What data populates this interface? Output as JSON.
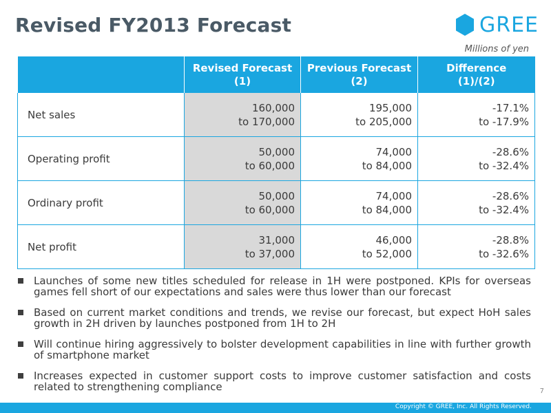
{
  "title": "Revised FY2013 Forecast",
  "logo": {
    "text": "GREE",
    "color": "#1aa6e0"
  },
  "units": "Millions of yen",
  "table": {
    "headers": [
      {
        "line1": "",
        "line2": ""
      },
      {
        "line1": "Revised Forecast",
        "line2": "(1)"
      },
      {
        "line1": "Previous Forecast",
        "line2": "(2)"
      },
      {
        "line1": "Difference",
        "line2": "(1)/(2)"
      }
    ],
    "rows": [
      {
        "label": "Net sales",
        "revised": [
          "160,000",
          "to 170,000"
        ],
        "previous": [
          "195,000",
          "to 205,000"
        ],
        "difference": [
          "-17.1%",
          "to -17.9%"
        ]
      },
      {
        "label": "Operating profit",
        "revised": [
          "50,000",
          "to 60,000"
        ],
        "previous": [
          "74,000",
          "to 84,000"
        ],
        "difference": [
          "-28.6%",
          "to -32.4%"
        ]
      },
      {
        "label": "Ordinary profit",
        "revised": [
          "50,000",
          "to 60,000"
        ],
        "previous": [
          "74,000",
          "to 84,000"
        ],
        "difference": [
          "-28.6%",
          "to -32.4%"
        ]
      },
      {
        "label": "Net profit",
        "revised": [
          "31,000",
          "to 37,000"
        ],
        "previous": [
          "46,000",
          "to 52,000"
        ],
        "difference": [
          "-28.8%",
          "to -32.6%"
        ]
      }
    ]
  },
  "bullets": [
    "Launches of some new titles scheduled for release in 1H were postponed. KPIs for overseas games fell short of our expectations and sales were thus lower than our forecast",
    "Based on current market conditions and trends, we revise our forecast, but expect HoH sales growth in 2H driven by launches postponed from 1H to 2H",
    "Will continue hiring aggressively to bolster development capabilities in line with further growth of smartphone market",
    "Increases expected in customer support costs to improve customer satisfaction and costs related to strengthening compliance"
  ],
  "page_number": "7",
  "copyright": "Copyright © GREE, Inc. All Rights Reserved.",
  "colors": {
    "accent": "#1aa6e0",
    "shade": "#d9d9d9",
    "title": "#4a5a66"
  }
}
